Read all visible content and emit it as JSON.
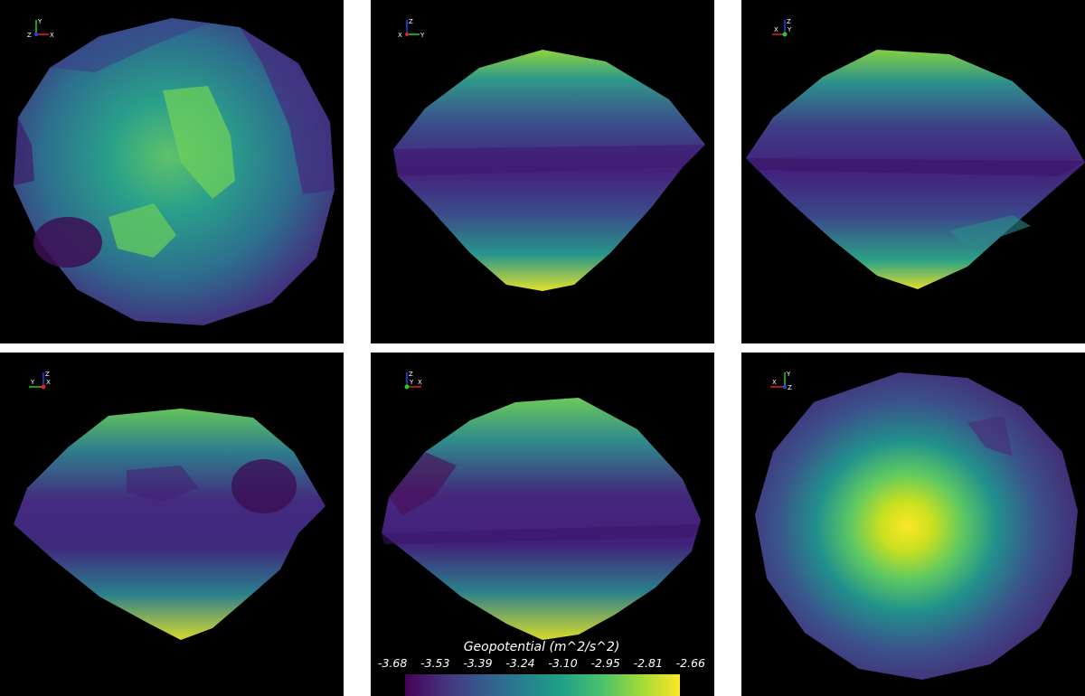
{
  "panels": [
    {
      "id": "p1",
      "axes": {
        "a": "Y",
        "b": "X",
        "c": "Z"
      }
    },
    {
      "id": "p2",
      "axes": {
        "a": "Z",
        "b": "Y",
        "c": "X"
      }
    },
    {
      "id": "p3",
      "axes": {
        "a": "Z",
        "b": "X",
        "c": "Y"
      }
    },
    {
      "id": "p4",
      "axes": {
        "a": "Z",
        "b": "Y",
        "c": "X"
      }
    },
    {
      "id": "p5",
      "axes": {
        "a": "Z",
        "b": "X",
        "c": "Y"
      }
    },
    {
      "id": "p6",
      "axes": {
        "a": "Y",
        "b": "X",
        "c": "Z"
      }
    }
  ],
  "colorbar": {
    "title": "Geopotential (m^2/s^2)",
    "ticks": [
      "-3.68",
      "-3.53",
      "-3.39",
      "-3.24",
      "-3.10",
      "-2.95",
      "-2.81",
      "-2.66"
    ],
    "colors": [
      "#440154",
      "#46327e",
      "#365c8d",
      "#277f8e",
      "#1fa187",
      "#4ac16d",
      "#a0da39",
      "#fde725"
    ]
  }
}
